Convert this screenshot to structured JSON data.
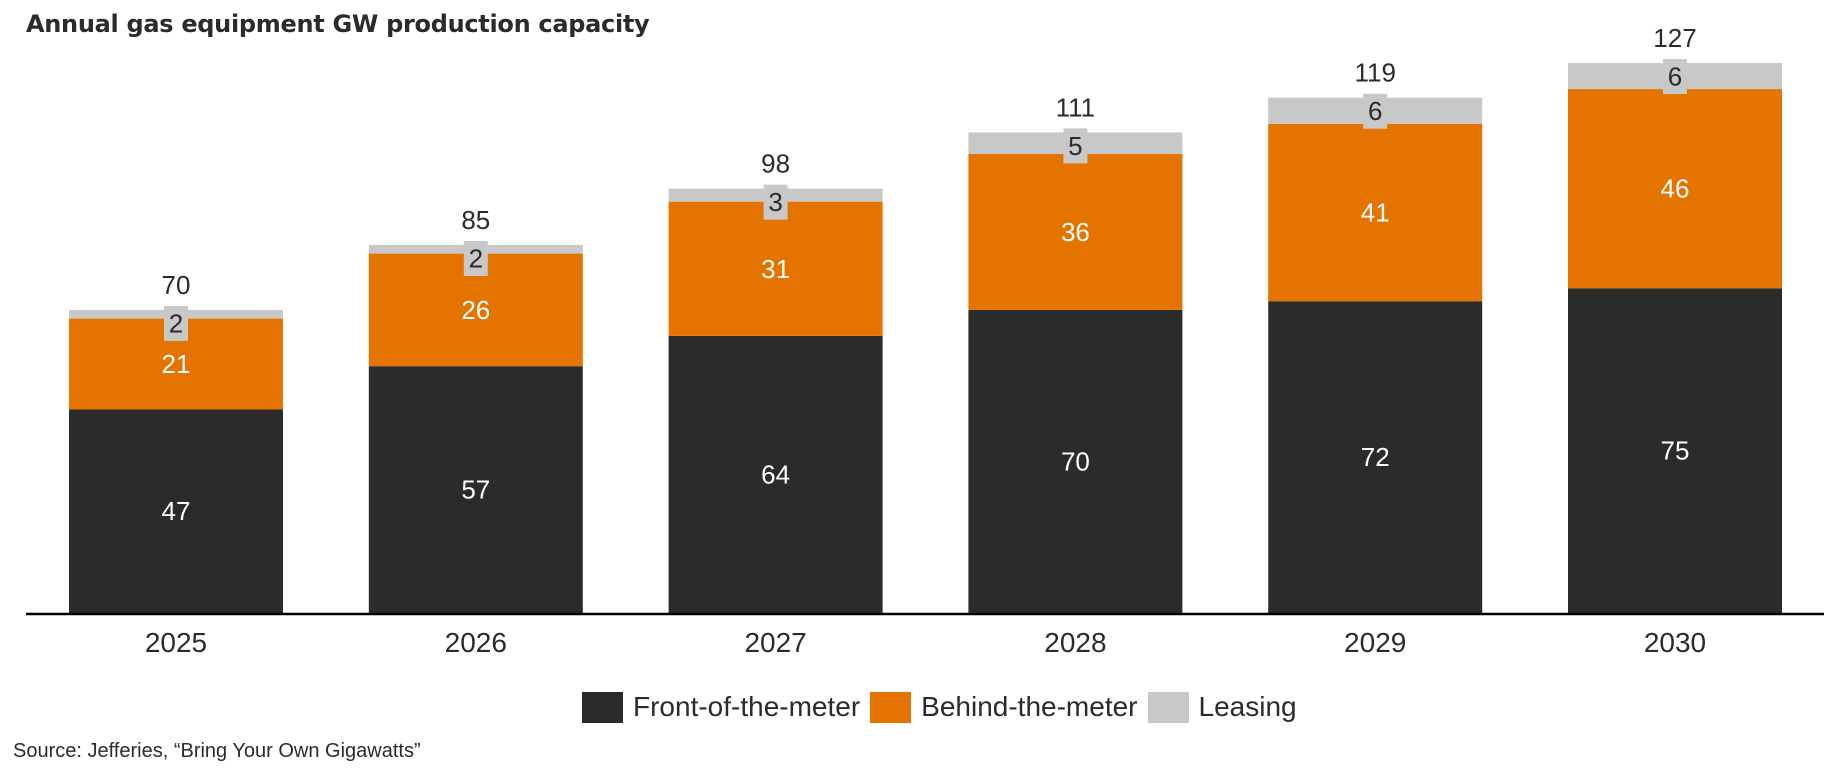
{
  "chart_data": {
    "type": "bar",
    "stacked": true,
    "title": "Annual gas equipment GW production capacity",
    "xlabel": "",
    "ylabel": "",
    "categories": [
      "2025",
      "2026",
      "2027",
      "2028",
      "2029",
      "2030"
    ],
    "series": [
      {
        "name": "Front-of-the-meter",
        "color": "#2b2b2b",
        "label_color": "#ffffff",
        "values": [
          47,
          57,
          64,
          70,
          72,
          75
        ]
      },
      {
        "name": "Behind-the-meter",
        "color": "#e57300",
        "label_color": "#ffffff",
        "values": [
          21,
          26,
          31,
          36,
          41,
          46
        ]
      },
      {
        "name": "Leasing",
        "color": "#c8c8c8",
        "label_color": "#2b2b2b",
        "values": [
          2,
          2,
          3,
          5,
          6,
          6
        ]
      }
    ],
    "totals": [
      70,
      85,
      98,
      111,
      119,
      127
    ],
    "ylim": [
      0,
      130
    ],
    "grid": false,
    "legend_position": "bottom-center",
    "source": "Source: Jefferies, “Bring Your Own Gigawatts”"
  }
}
